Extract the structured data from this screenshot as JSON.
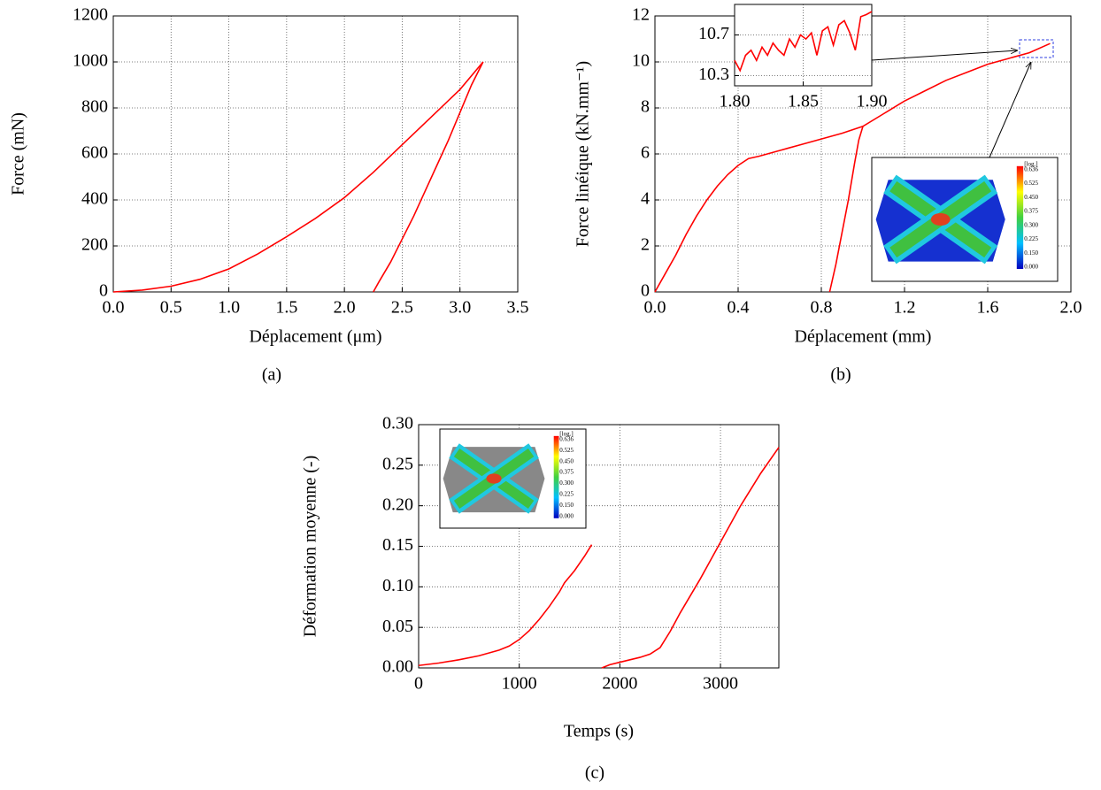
{
  "chart_data": [
    {
      "type": "line",
      "caption": "(a)",
      "x_label": "Déplacement (μm)",
      "y_label": "Force (mN)",
      "xlim": [
        0,
        3.5
      ],
      "ylim": [
        0,
        1200
      ],
      "xticks": [
        {
          "value": 0,
          "label": "0.0"
        },
        0.5,
        {
          "value": 1,
          "label": "1.0"
        },
        1.5,
        {
          "value": 2,
          "label": "2.0"
        },
        2.5,
        {
          "value": 3,
          "label": "3.0"
        },
        3.5
      ],
      "yticks": [
        0,
        200,
        400,
        600,
        800,
        1000,
        1200
      ],
      "grid": true,
      "series": [
        {
          "color": "#ff0000",
          "x": [
            0,
            0.25,
            0.5,
            0.75,
            1.0,
            1.25,
            1.5,
            1.75,
            2.0,
            2.25,
            2.5,
            2.75,
            3.0,
            3.2
          ],
          "values": [
            0,
            8,
            25,
            55,
            100,
            165,
            240,
            320,
            410,
            520,
            640,
            760,
            880,
            1000
          ]
        },
        {
          "color": "#ff0000",
          "x": [
            3.2,
            3.1,
            3.0,
            2.9,
            2.8,
            2.7,
            2.6,
            2.5,
            2.4,
            2.3,
            2.25
          ],
          "values": [
            1000,
            900,
            780,
            660,
            550,
            440,
            330,
            230,
            130,
            45,
            0
          ]
        }
      ]
    },
    {
      "type": "line",
      "caption": "(b)",
      "x_label": "Déplacement (mm)",
      "y_label": "Force linéique (kN.mm⁻¹)",
      "xlim": [
        0,
        2.0
      ],
      "ylim": [
        0,
        12
      ],
      "xticks": [
        {
          "value": 0,
          "label": "0.0"
        },
        0.4,
        0.8,
        1.2,
        1.6,
        {
          "value": 2,
          "label": "2.0"
        }
      ],
      "yticks": [
        0,
        2,
        4,
        6,
        8,
        10,
        12
      ],
      "grid": true,
      "series": [
        {
          "color": "#ff0000",
          "x": [
            0,
            0.05,
            0.1,
            0.15,
            0.2,
            0.25,
            0.3,
            0.35,
            0.4,
            0.45,
            0.5,
            0.6,
            0.7,
            0.8,
            0.9,
            1.0,
            1.1,
            1.2,
            1.3,
            1.4,
            1.5,
            1.6,
            1.7,
            1.8,
            1.9
          ],
          "values": [
            0,
            0.8,
            1.6,
            2.5,
            3.3,
            4.0,
            4.6,
            5.1,
            5.5,
            5.8,
            5.9,
            6.15,
            6.4,
            6.65,
            6.9,
            7.2,
            7.75,
            8.3,
            8.75,
            9.2,
            9.55,
            9.9,
            10.15,
            10.4,
            10.8
          ]
        },
        {
          "color": "#ff0000",
          "x": [
            0.84,
            0.87,
            0.9,
            0.93,
            0.96,
            0.98,
            1.0
          ],
          "values": [
            0,
            1.2,
            2.6,
            4.0,
            5.6,
            6.6,
            7.2
          ]
        }
      ],
      "inset": {
        "type": "line",
        "xlim": [
          1.8,
          1.9
        ],
        "ylim": [
          10.2,
          11.0
        ],
        "xticks": [
          {
            "value": 1.8,
            "label": "1.80"
          },
          1.85,
          {
            "value": 1.9,
            "label": "1.90"
          }
        ],
        "yticks": [
          10.3,
          10.7
        ],
        "grid": true,
        "series": [
          {
            "color": "#ff0000",
            "x": [
              1.8,
              1.804,
              1.808,
              1.812,
              1.816,
              1.82,
              1.824,
              1.828,
              1.832,
              1.836,
              1.84,
              1.844,
              1.848,
              1.852,
              1.856,
              1.86,
              1.864,
              1.868,
              1.872,
              1.876,
              1.88,
              1.884,
              1.888,
              1.892,
              1.896,
              1.9
            ],
            "values": [
              10.45,
              10.35,
              10.5,
              10.55,
              10.45,
              10.58,
              10.5,
              10.62,
              10.55,
              10.5,
              10.66,
              10.58,
              10.7,
              10.66,
              10.72,
              10.5,
              10.74,
              10.78,
              10.6,
              10.8,
              10.84,
              10.72,
              10.55,
              10.88,
              10.9,
              10.93
            ]
          }
        ]
      },
      "colorbar_labels": [
        "[log.]",
        "0.636",
        "0.525",
        "0.450",
        "0.375",
        "0.300",
        "0.225",
        "0.150",
        "0.000"
      ]
    },
    {
      "type": "line",
      "caption": "(c)",
      "x_label": "Temps (s)",
      "y_label": "Déformation moyenne (-)",
      "xlim": [
        0,
        3580
      ],
      "ylim": [
        0,
        0.3
      ],
      "xticks": [
        0,
        1000,
        2000,
        3000
      ],
      "yticks": [
        {
          "value": 0,
          "label": "0.00"
        },
        0.05,
        {
          "value": 0.1,
          "label": "0.10"
        },
        0.15,
        {
          "value": 0.2,
          "label": "0.20"
        },
        0.25,
        {
          "value": 0.3,
          "label": "0.30"
        }
      ],
      "grid": true,
      "series": [
        {
          "color": "#ff0000",
          "x": [
            0,
            200,
            400,
            600,
            800,
            900,
            1000,
            1100,
            1200,
            1300,
            1400,
            1450,
            1550,
            1650,
            1720
          ],
          "values": [
            0.003,
            0.006,
            0.01,
            0.015,
            0.022,
            0.027,
            0.035,
            0.046,
            0.06,
            0.076,
            0.094,
            0.105,
            0.12,
            0.138,
            0.152
          ]
        },
        {
          "color": "#ff0000",
          "x": [
            1820,
            1900,
            2000,
            2200,
            2300,
            2400,
            2500,
            2600,
            2800,
            3000,
            3200,
            3400,
            3580
          ],
          "values": [
            0,
            0.004,
            0.007,
            0.013,
            0.017,
            0.025,
            0.045,
            0.068,
            0.11,
            0.155,
            0.2,
            0.24,
            0.272
          ]
        }
      ],
      "colorbar_labels": [
        "[log.]",
        "0.636",
        "0.525",
        "0.450",
        "0.375",
        "0.300",
        "0.225",
        "0.150",
        "0.000"
      ]
    }
  ]
}
